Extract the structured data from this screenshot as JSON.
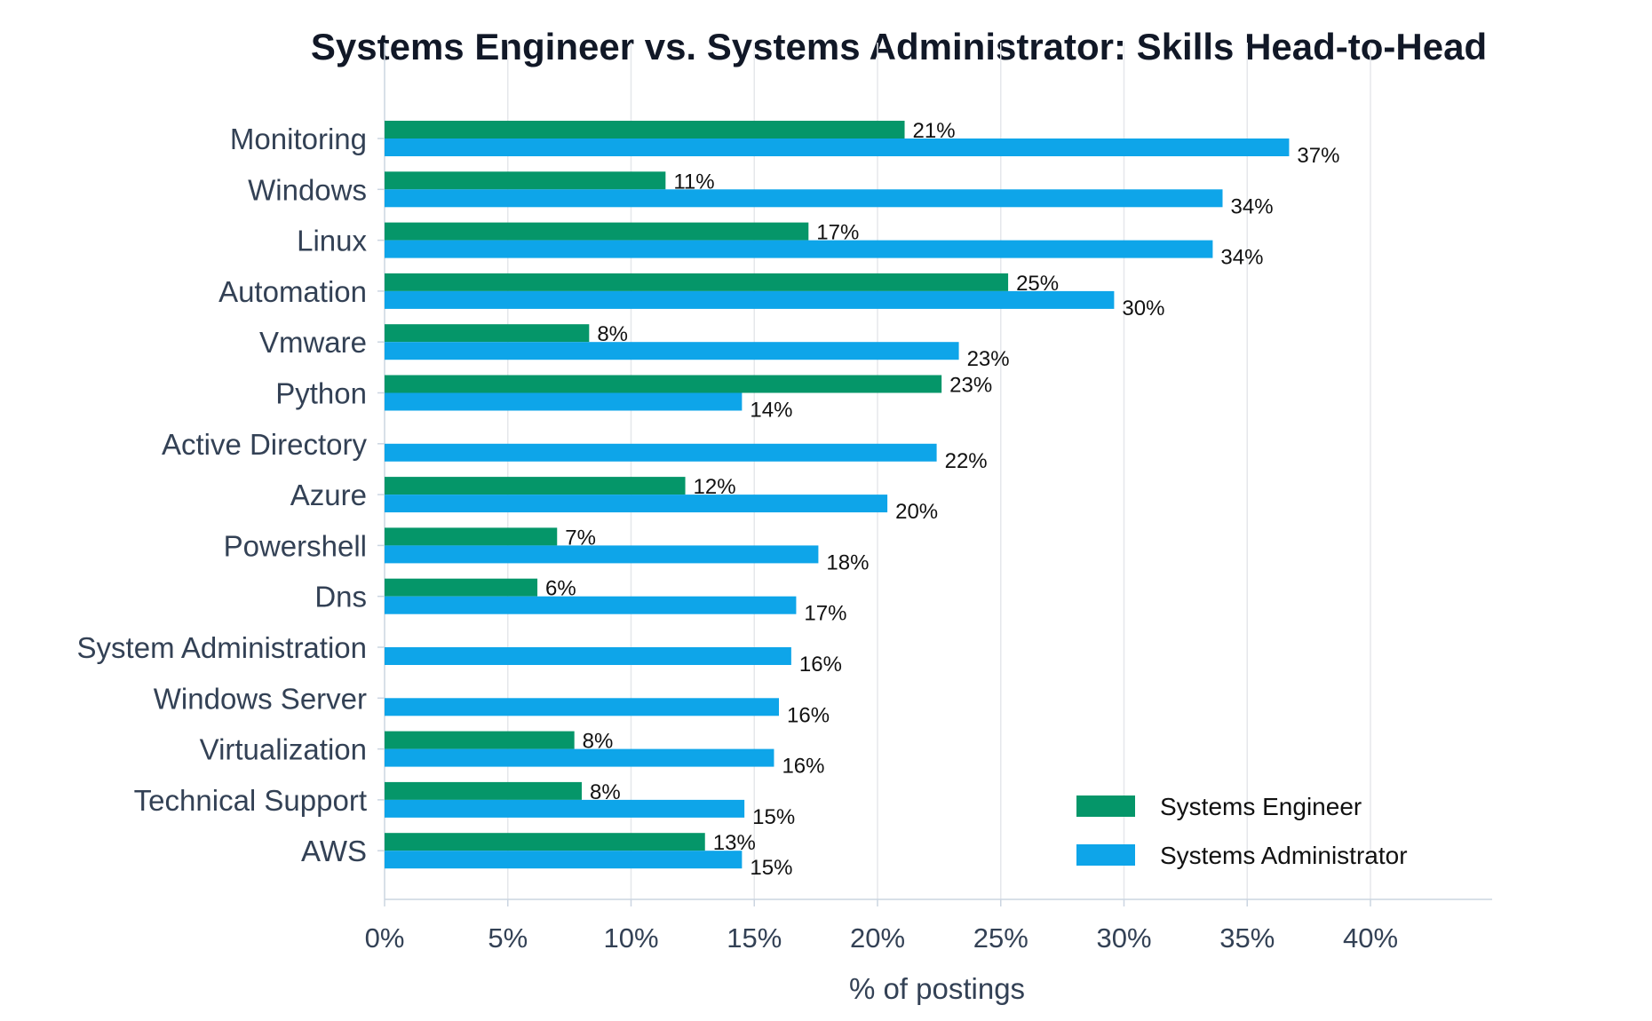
{
  "chart_data": {
    "type": "bar",
    "orientation": "horizontal",
    "title": "Systems Engineer vs. Systems Administrator: Skills Head-to-Head",
    "xlabel": "% of postings",
    "ylabel": "",
    "xlim": [
      0,
      45
    ],
    "xticks": [
      0,
      5,
      10,
      15,
      20,
      25,
      30,
      35,
      40
    ],
    "xtick_labels": [
      "0%",
      "5%",
      "10%",
      "15%",
      "20%",
      "25%",
      "30%",
      "35%",
      "40%"
    ],
    "grid": "vertical",
    "legend_position": "bottom-right",
    "categories": [
      "Monitoring",
      "Windows",
      "Linux",
      "Automation",
      "Vmware",
      "Python",
      "Active Directory",
      "Azure",
      "Powershell",
      "Dns",
      "System Administration",
      "Windows Server",
      "Virtualization",
      "Technical Support",
      "AWS"
    ],
    "series": [
      {
        "name": "Systems Engineer",
        "color": "#059669",
        "values": [
          21.1,
          11.4,
          17.2,
          25.3,
          8.3,
          22.6,
          null,
          12.2,
          7.0,
          6.2,
          null,
          null,
          7.7,
          8.0,
          13.0
        ],
        "labels": [
          "21%",
          "11%",
          "17%",
          "25%",
          "8%",
          "23%",
          "",
          "12%",
          "7%",
          "6%",
          "",
          "",
          "8%",
          "8%",
          "13%"
        ]
      },
      {
        "name": "Systems Administrator",
        "color": "#0ea5e9",
        "values": [
          36.7,
          34.0,
          33.6,
          29.6,
          23.3,
          14.5,
          22.4,
          20.4,
          17.6,
          16.7,
          16.5,
          16.0,
          15.8,
          14.6,
          14.5
        ],
        "labels": [
          "37%",
          "34%",
          "34%",
          "30%",
          "23%",
          "14%",
          "22%",
          "20%",
          "18%",
          "17%",
          "16%",
          "16%",
          "16%",
          "15%",
          "15%"
        ]
      }
    ]
  }
}
